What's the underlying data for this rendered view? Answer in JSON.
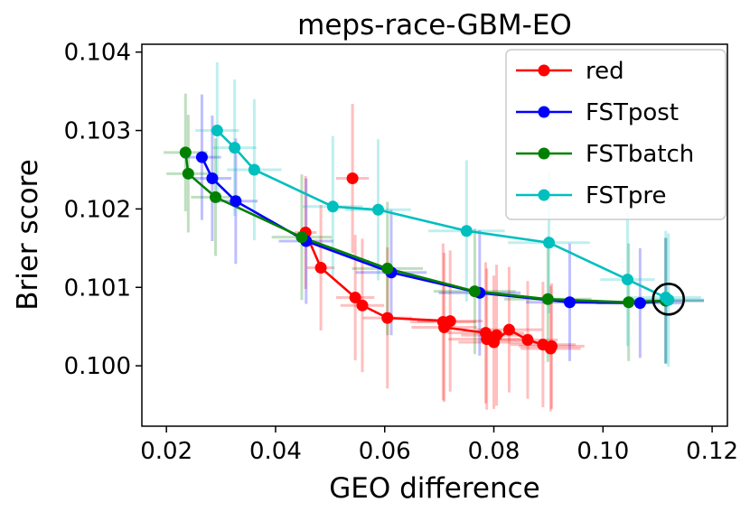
{
  "chart_data": {
    "type": "line",
    "title": "meps-race-GBM-EO",
    "xlabel": "GEO difference",
    "ylabel": "Brier score",
    "xlim": [
      0.0155,
      0.1228
    ],
    "ylim": [
      0.09923,
      0.1041
    ],
    "xticks": [
      0.02,
      0.04,
      0.06,
      0.08,
      0.1,
      0.12
    ],
    "xtick_labels": [
      "0.02",
      "0.04",
      "0.06",
      "0.08",
      "0.10",
      "0.12"
    ],
    "yticks": [
      0.1,
      0.101,
      0.102,
      0.103,
      0.104
    ],
    "ytick_labels": [
      "0.100",
      "0.101",
      "0.102",
      "0.103",
      "0.104"
    ],
    "grid": false,
    "legend_position": "top-right",
    "error_bars": true,
    "highlight_marker": {
      "x": 0.112,
      "y": 0.10085,
      "shape": "open-circle"
    },
    "series": [
      {
        "name": "red",
        "color": "#ff0000",
        "draw_line": false,
        "points": [
          {
            "x": 0.0541,
            "y": 0.10239,
            "xerr": 0.003,
            "yerr": 0.00095
          },
          {
            "x": 0.0455,
            "y": 0.1017,
            "xerr": 0.002,
            "yerr": 0.00072
          },
          {
            "x": 0.0483,
            "y": 0.10125,
            "xerr": 0.0025,
            "yerr": 0.0008
          },
          {
            "x": 0.0546,
            "y": 0.10087,
            "xerr": 0.0035,
            "yerr": 0.0008
          },
          {
            "x": 0.0559,
            "y": 0.10077,
            "xerr": 0.004,
            "yerr": 0.00085
          },
          {
            "x": 0.0605,
            "y": 0.10061,
            "xerr": 0.0045,
            "yerr": 0.0009
          },
          {
            "x": 0.0707,
            "y": 0.10056,
            "xerr": 0.006,
            "yerr": 0.001
          },
          {
            "x": 0.072,
            "y": 0.10057,
            "xerr": 0.006,
            "yerr": 0.0009
          },
          {
            "x": 0.0709,
            "y": 0.10049,
            "xerr": 0.006,
            "yerr": 0.00095
          },
          {
            "x": 0.0785,
            "y": 0.10042,
            "xerr": 0.007,
            "yerr": 0.0009
          },
          {
            "x": 0.0805,
            "y": 0.10039,
            "xerr": 0.0065,
            "yerr": 0.0009
          },
          {
            "x": 0.0787,
            "y": 0.10034,
            "xerr": 0.007,
            "yerr": 0.0009
          },
          {
            "x": 0.08,
            "y": 0.1003,
            "xerr": 0.0065,
            "yerr": 0.00085
          },
          {
            "x": 0.0828,
            "y": 0.10046,
            "xerr": 0.006,
            "yerr": 0.0008
          },
          {
            "x": 0.0862,
            "y": 0.10033,
            "xerr": 0.0055,
            "yerr": 0.00075
          },
          {
            "x": 0.089,
            "y": 0.10027,
            "xerr": 0.006,
            "yerr": 0.0008
          },
          {
            "x": 0.0906,
            "y": 0.10025,
            "xerr": 0.006,
            "yerr": 0.0008
          },
          {
            "x": 0.0904,
            "y": 0.10022,
            "xerr": 0.0055,
            "yerr": 0.0008
          }
        ],
        "line_order": [
          1,
          2,
          3,
          4,
          5,
          7,
          8,
          9,
          10,
          11,
          12,
          13,
          14,
          15,
          16,
          17
        ]
      },
      {
        "name": "FSTpost",
        "color": "#0000ff",
        "draw_line": true,
        "points": [
          {
            "x": 0.0265,
            "y": 0.10266,
            "xerr": 0.0035,
            "yerr": 0.0008
          },
          {
            "x": 0.0284,
            "y": 0.10239,
            "xerr": 0.0035,
            "yerr": 0.0008
          },
          {
            "x": 0.0327,
            "y": 0.1021,
            "xerr": 0.004,
            "yerr": 0.0008
          },
          {
            "x": 0.0456,
            "y": 0.10159,
            "xerr": 0.005,
            "yerr": 0.0008
          },
          {
            "x": 0.0612,
            "y": 0.10119,
            "xerr": 0.0065,
            "yerr": 0.0008
          },
          {
            "x": 0.0774,
            "y": 0.10093,
            "xerr": 0.0075,
            "yerr": 0.0008
          },
          {
            "x": 0.0939,
            "y": 0.10081,
            "xerr": 0.008,
            "yerr": 0.00075
          },
          {
            "x": 0.1068,
            "y": 0.1008,
            "xerr": 0.008,
            "yerr": 0.0007
          },
          {
            "x": 0.1115,
            "y": 0.10083,
            "xerr": 0.007,
            "yerr": 0.0008
          }
        ]
      },
      {
        "name": "FSTbatch",
        "color": "#008000",
        "draw_line": true,
        "points": [
          {
            "x": 0.0235,
            "y": 0.10272,
            "xerr": 0.004,
            "yerr": 0.00075
          },
          {
            "x": 0.024,
            "y": 0.10245,
            "xerr": 0.004,
            "yerr": 0.00075
          },
          {
            "x": 0.029,
            "y": 0.10215,
            "xerr": 0.0045,
            "yerr": 0.00075
          },
          {
            "x": 0.0448,
            "y": 0.10164,
            "xerr": 0.0055,
            "yerr": 0.0008
          },
          {
            "x": 0.0605,
            "y": 0.10124,
            "xerr": 0.0065,
            "yerr": 0.00085
          },
          {
            "x": 0.0765,
            "y": 0.10095,
            "xerr": 0.0075,
            "yerr": 0.0008
          },
          {
            "x": 0.0899,
            "y": 0.10085,
            "xerr": 0.008,
            "yerr": 0.0008
          },
          {
            "x": 0.1047,
            "y": 0.10081,
            "xerr": 0.007,
            "yerr": 0.00075
          },
          {
            "x": 0.1115,
            "y": 0.10083,
            "xerr": 0.007,
            "yerr": 0.0008
          }
        ]
      },
      {
        "name": "FSTpre",
        "color": "#00bfbf",
        "draw_line": true,
        "points": [
          {
            "x": 0.0293,
            "y": 0.103,
            "xerr": 0.004,
            "yerr": 0.00087
          },
          {
            "x": 0.0325,
            "y": 0.10278,
            "xerr": 0.004,
            "yerr": 0.00087
          },
          {
            "x": 0.0361,
            "y": 0.1025,
            "xerr": 0.005,
            "yerr": 0.0009
          },
          {
            "x": 0.0505,
            "y": 0.10203,
            "xerr": 0.0055,
            "yerr": 0.0009
          },
          {
            "x": 0.0588,
            "y": 0.10199,
            "xerr": 0.006,
            "yerr": 0.0009
          },
          {
            "x": 0.075,
            "y": 0.10172,
            "xerr": 0.007,
            "yerr": 0.0009
          },
          {
            "x": 0.0901,
            "y": 0.10157,
            "xerr": 0.0075,
            "yerr": 0.0009
          },
          {
            "x": 0.1045,
            "y": 0.1011,
            "xerr": 0.005,
            "yerr": 0.00085
          },
          {
            "x": 0.1115,
            "y": 0.10087,
            "xerr": 0.0065,
            "yerr": 0.00085
          },
          {
            "x": 0.112,
            "y": 0.10084,
            "xerr": 0.0065,
            "yerr": 0.00085
          }
        ]
      }
    ]
  }
}
